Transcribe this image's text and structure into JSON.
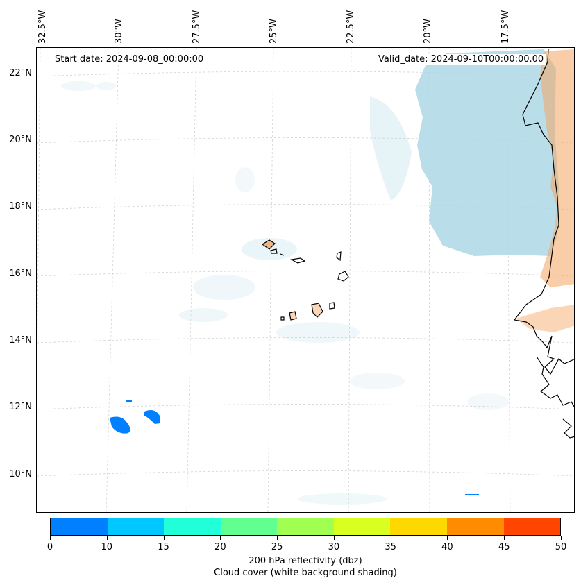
{
  "header": {
    "start_date": "Start date: 2024-09-08_00:00:00",
    "valid_date": "Valid_date: 2024-09-10T00:00:00.00"
  },
  "map": {
    "lon_labels": [
      "32.5°W",
      "30°W",
      "27.5°W",
      "25°W",
      "22.5°W",
      "20°W",
      "17.5°W"
    ],
    "lat_labels": [
      "22°N",
      "20°N",
      "18°N",
      "16°N",
      "14°N",
      "12°N",
      "10°N"
    ],
    "colors": {
      "cloud_cover": "#add8e6",
      "land_shading": "#f4a460",
      "coastline": "#000000",
      "gridline": "#cccccc"
    }
  },
  "colorbar": {
    "ticks": [
      "0",
      "10",
      "15",
      "20",
      "25",
      "30",
      "35",
      "40",
      "45",
      "50"
    ],
    "colors": [
      "#0080ff",
      "#00c8ff",
      "#20ffd8",
      "#60ff90",
      "#a0ff50",
      "#d8ff20",
      "#ffd800",
      "#ff8c00",
      "#ff4500"
    ],
    "label_line1": "200 hPa reflectivity (dbz)",
    "label_line2": "Cloud cover (white background shading)"
  }
}
